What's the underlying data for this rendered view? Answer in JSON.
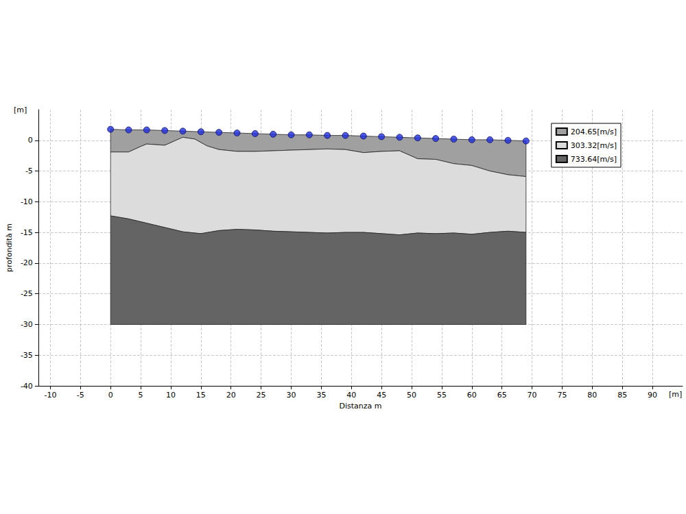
{
  "chart_data": {
    "type": "layered_section",
    "xlabel": "Distanza m",
    "ylabel": "profondità m",
    "x_unit_label": "[m]",
    "y_unit_label": "[m]",
    "xlim": [
      -12,
      95
    ],
    "xticks": [
      -10,
      -5,
      0,
      5,
      10,
      15,
      20,
      25,
      30,
      35,
      40,
      45,
      50,
      55,
      60,
      65,
      70,
      75,
      80,
      85,
      90
    ],
    "ylim": [
      -40,
      5
    ],
    "yticks": [
      -40,
      -35,
      -30,
      -25,
      -20,
      -15,
      -10,
      -5,
      0
    ],
    "grid": true,
    "legend": "upper right",
    "series": [
      {
        "name": "204.65[m/s]",
        "color": "#a0a0a0",
        "top": {
          "x": [
            0,
            3,
            6,
            9,
            12,
            15,
            18,
            21,
            24,
            27,
            30,
            33,
            36,
            39,
            42,
            45,
            48,
            51,
            54,
            57,
            60,
            63,
            66,
            69
          ],
          "y": [
            1.8,
            1.7,
            1.7,
            1.6,
            1.5,
            1.4,
            1.3,
            1.2,
            1.1,
            1.0,
            0.9,
            0.9,
            0.8,
            0.8,
            0.7,
            0.6,
            0.5,
            0.4,
            0.3,
            0.2,
            0.1,
            0.1,
            0.0,
            -0.1
          ]
        },
        "bottom": {
          "x": [
            0,
            3,
            5,
            6,
            9,
            12,
            14,
            16,
            18,
            21,
            24,
            27,
            30,
            33,
            36,
            39,
            42,
            45,
            48,
            51,
            54,
            57,
            60,
            63,
            66,
            69
          ],
          "y": [
            -1.9,
            -1.9,
            -1.0,
            -0.6,
            -0.8,
            0.5,
            0.2,
            -0.9,
            -1.5,
            -1.8,
            -1.8,
            -1.7,
            -1.6,
            -1.5,
            -1.4,
            -1.5,
            -2.0,
            -1.8,
            -1.7,
            -3.0,
            -3.1,
            -3.8,
            -4.1,
            -5.0,
            -5.6,
            -5.9
          ]
        }
      },
      {
        "name": "303.32[m/s]",
        "color": "#dcdcdc",
        "top": {
          "x": [
            0,
            3,
            5,
            6,
            9,
            12,
            14,
            16,
            18,
            21,
            24,
            27,
            30,
            33,
            36,
            39,
            42,
            45,
            48,
            51,
            54,
            57,
            60,
            63,
            66,
            69
          ],
          "y": [
            -1.9,
            -1.9,
            -1.0,
            -0.6,
            -0.8,
            0.5,
            0.2,
            -0.9,
            -1.5,
            -1.8,
            -1.8,
            -1.7,
            -1.6,
            -1.5,
            -1.4,
            -1.5,
            -2.0,
            -1.8,
            -1.7,
            -3.0,
            -3.1,
            -3.8,
            -4.1,
            -5.0,
            -5.6,
            -5.9
          ]
        },
        "bottom": {
          "x": [
            0,
            3,
            6,
            9,
            12,
            15,
            18,
            21,
            24,
            27,
            30,
            33,
            36,
            39,
            42,
            45,
            48,
            51,
            54,
            57,
            60,
            63,
            66,
            69
          ],
          "y": [
            -12.3,
            -12.8,
            -13.5,
            -14.2,
            -14.9,
            -15.2,
            -14.7,
            -14.5,
            -14.6,
            -14.8,
            -14.9,
            -15.0,
            -15.1,
            -15.0,
            -15.0,
            -15.2,
            -15.4,
            -15.1,
            -15.2,
            -15.1,
            -15.3,
            -15.0,
            -14.8,
            -15.0
          ]
        }
      },
      {
        "name": "733.64[m/s]",
        "color": "#646464",
        "top": {
          "x": [
            0,
            3,
            6,
            9,
            12,
            15,
            18,
            21,
            24,
            27,
            30,
            33,
            36,
            39,
            42,
            45,
            48,
            51,
            54,
            57,
            60,
            63,
            66,
            69
          ],
          "y": [
            -12.3,
            -12.8,
            -13.5,
            -14.2,
            -14.9,
            -15.2,
            -14.7,
            -14.5,
            -14.6,
            -14.8,
            -14.9,
            -15.0,
            -15.1,
            -15.0,
            -15.0,
            -15.2,
            -15.4,
            -15.1,
            -15.2,
            -15.1,
            -15.3,
            -15.0,
            -14.8,
            -15.0
          ]
        },
        "bottom": {
          "x": [
            0,
            69
          ],
          "y": [
            -30,
            -30
          ]
        }
      }
    ],
    "geophones": {
      "color": "#1f2fe0",
      "marker": "circle",
      "x": [
        0,
        3,
        6,
        9,
        12,
        15,
        18,
        21,
        24,
        27,
        30,
        33,
        36,
        39,
        42,
        45,
        48,
        51,
        54,
        57,
        60,
        63,
        66,
        69
      ],
      "y": [
        1.8,
        1.7,
        1.7,
        1.6,
        1.5,
        1.4,
        1.3,
        1.2,
        1.1,
        1.0,
        0.9,
        0.9,
        0.8,
        0.8,
        0.7,
        0.6,
        0.5,
        0.4,
        0.3,
        0.2,
        0.1,
        0.1,
        0.0,
        -0.1
      ]
    }
  }
}
